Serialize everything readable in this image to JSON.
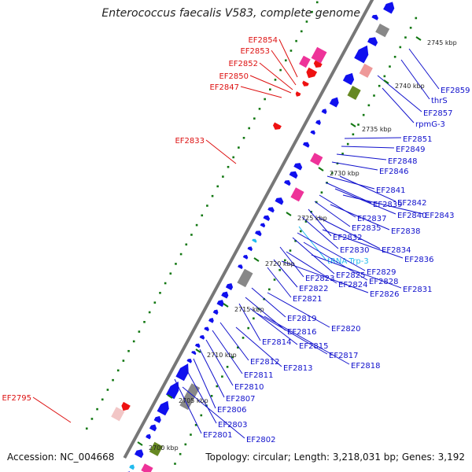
{
  "title": "Enterococcus faecalis V583, complete genome",
  "accession_text": "Accession: NC_004668",
  "topology_text": "Topology: circular; Length: 3,218,031 bp; Genes: 3,192",
  "colors": {
    "forward": "#1010ee",
    "reverse": "#ee1111",
    "trna": "#22bbee",
    "pseudo": "#888888",
    "rrna": "#ee3399",
    "misc": "#668822",
    "backbone": "#777777",
    "tick": "#117711"
  },
  "kbp_labels": [
    "2745 kbp",
    "2740 kbp",
    "2735 kbp",
    "2730 kbp",
    "2725 kbp",
    "2720 kbp",
    "2715 kbp",
    "2710 kbp",
    "2705 kbp",
    "2700 kbp"
  ],
  "reverse_labels": [
    "EF2854",
    "EF2853",
    "EF2852",
    "EF2850",
    "EF2847",
    "EF2833",
    "EF2795"
  ],
  "forward_labels": [
    "EF2859",
    "thrS",
    "EF2857",
    "rpmG-3",
    "EF2851",
    "EF2849",
    "EF2848",
    "EF2846",
    "EF2841",
    "EF2842",
    "EF2839",
    "EF2840",
    "EF2843",
    "EF2837",
    "EF2835",
    "EF2838",
    "EF2832",
    "EF2830",
    "EF2834",
    "tRNA-Trp-3",
    "EF2836",
    "EF2829",
    "EF2825",
    "EF2828",
    "EF2823",
    "EF2824",
    "EF2831",
    "EF2822",
    "EF2826",
    "EF2821",
    "EF2819",
    "EF2820",
    "EF2816",
    "EF2814",
    "EF2815",
    "EF2817",
    "EF2818",
    "EF2812",
    "EF2813",
    "EF2811",
    "EF2810",
    "EF2807",
    "EF2806",
    "EF2803",
    "EF2801",
    "EF2802"
  ]
}
